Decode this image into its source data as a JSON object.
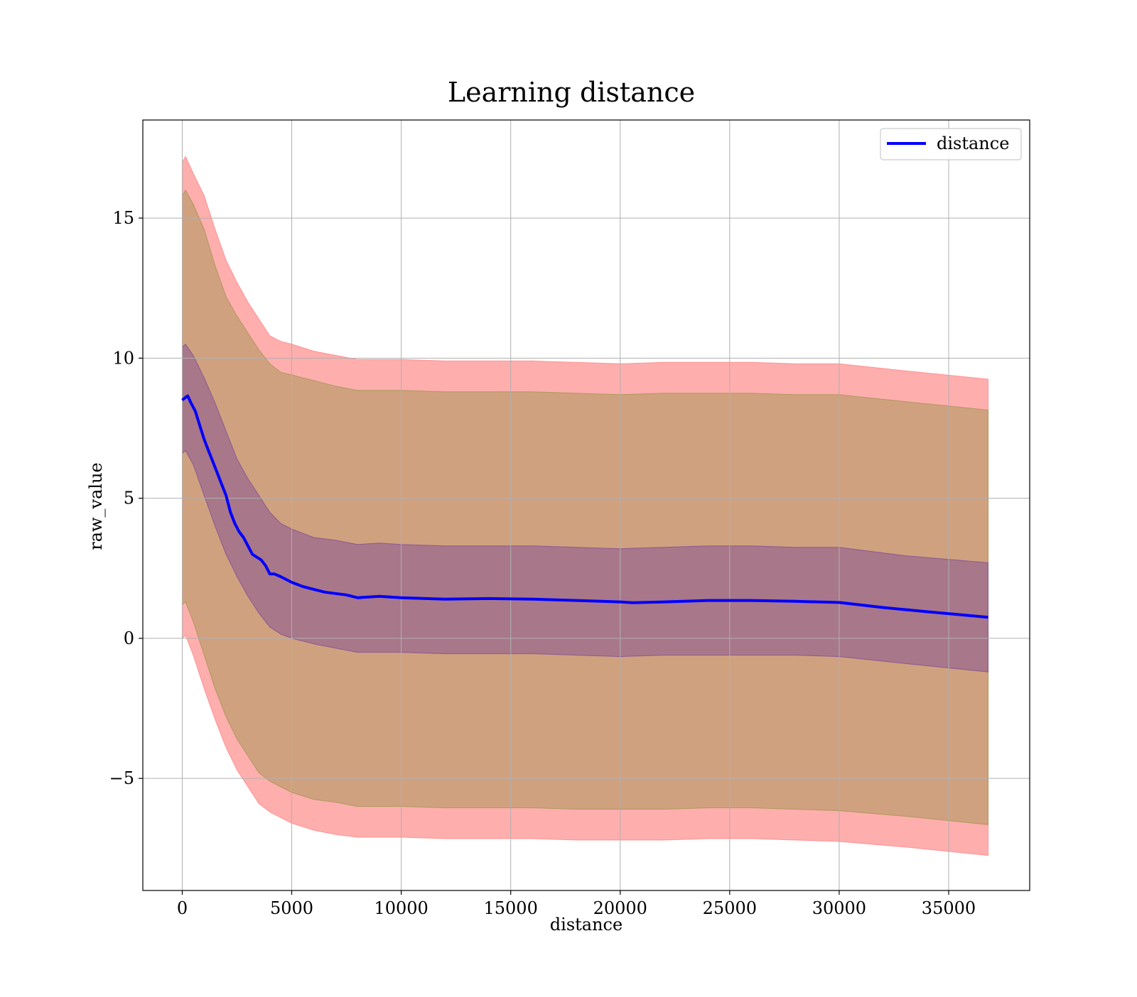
{
  "chart_data": {
    "type": "area",
    "title": "Learning distance",
    "xlabel": "distance",
    "ylabel": "raw_value",
    "xlim": [
      -1800,
      38700
    ],
    "ylim": [
      -9.0,
      18.5
    ],
    "grid": true,
    "legend_position": "top-right",
    "x_ticks": [
      0,
      5000,
      10000,
      15000,
      20000,
      25000,
      30000,
      35000
    ],
    "x_tick_labels": [
      "0",
      "5000",
      "10000",
      "15000",
      "20000",
      "25000",
      "30000",
      "35000"
    ],
    "y_ticks": [
      -5,
      0,
      5,
      10,
      15
    ],
    "y_tick_labels": [
      "−5",
      "0",
      "5",
      "10",
      "15"
    ],
    "colors": {
      "line": "#0000ff",
      "outer_band": "#ff6b6b",
      "middle_band": "#8a8f3a",
      "inner_band": "#6b3a9a",
      "grid": "#b0b0b0"
    },
    "series": [
      {
        "name": "distance",
        "role": "mean",
        "x": [
          0,
          150,
          250,
          400,
          600,
          800,
          1000,
          1200,
          1400,
          1600,
          1800,
          2000,
          2200,
          2400,
          2600,
          2800,
          3000,
          3200,
          3400,
          3600,
          3800,
          4000,
          4200,
          4500,
          5000,
          5500,
          6000,
          6500,
          7000,
          7500,
          8000,
          9000,
          10000,
          12000,
          14000,
          16000,
          18000,
          20000,
          20600,
          22000,
          24000,
          26000,
          28000,
          30000,
          32000,
          34000,
          36800
        ],
        "y": [
          8.5,
          8.6,
          8.65,
          8.4,
          8.1,
          7.6,
          7.1,
          6.7,
          6.3,
          5.9,
          5.5,
          5.1,
          4.5,
          4.1,
          3.8,
          3.6,
          3.3,
          3.0,
          2.9,
          2.8,
          2.6,
          2.3,
          2.3,
          2.2,
          2.0,
          1.85,
          1.75,
          1.65,
          1.6,
          1.55,
          1.45,
          1.5,
          1.45,
          1.4,
          1.42,
          1.4,
          1.35,
          1.3,
          1.27,
          1.3,
          1.35,
          1.35,
          1.32,
          1.28,
          1.1,
          0.95,
          0.75
        ]
      }
    ],
    "bands": [
      {
        "role": "outer",
        "x": [
          0,
          150,
          500,
          1000,
          1500,
          2000,
          2500,
          3000,
          3500,
          4000,
          4500,
          5000,
          6000,
          7000,
          8000,
          9000,
          10000,
          12000,
          14000,
          16000,
          18000,
          20000,
          22000,
          24000,
          26000,
          28000,
          30000,
          33000,
          36800
        ],
        "upper": [
          17.0,
          17.2,
          16.6,
          15.8,
          14.6,
          13.5,
          12.7,
          12.0,
          11.4,
          10.8,
          10.6,
          10.5,
          10.25,
          10.1,
          9.95,
          9.95,
          9.95,
          9.9,
          9.9,
          9.9,
          9.85,
          9.8,
          9.85,
          9.85,
          9.85,
          9.8,
          9.8,
          9.55,
          9.25
        ],
        "lower": [
          0.0,
          0.1,
          -0.6,
          -1.8,
          -2.9,
          -3.9,
          -4.7,
          -5.3,
          -5.9,
          -6.2,
          -6.4,
          -6.6,
          -6.85,
          -7.0,
          -7.1,
          -7.1,
          -7.1,
          -7.15,
          -7.15,
          -7.15,
          -7.2,
          -7.2,
          -7.2,
          -7.15,
          -7.15,
          -7.2,
          -7.25,
          -7.45,
          -7.75
        ]
      },
      {
        "role": "middle",
        "x": [
          0,
          150,
          500,
          1000,
          1500,
          2000,
          2500,
          3000,
          3500,
          4000,
          4500,
          5000,
          6000,
          7000,
          8000,
          9000,
          10000,
          12000,
          14000,
          16000,
          18000,
          20000,
          22000,
          24000,
          26000,
          28000,
          30000,
          33000,
          36800
        ],
        "upper": [
          15.8,
          16.0,
          15.5,
          14.6,
          13.3,
          12.2,
          11.5,
          10.9,
          10.3,
          9.8,
          9.5,
          9.4,
          9.2,
          9.0,
          8.85,
          8.85,
          8.85,
          8.8,
          8.8,
          8.8,
          8.75,
          8.7,
          8.75,
          8.75,
          8.75,
          8.7,
          8.7,
          8.45,
          8.15
        ],
        "lower": [
          1.2,
          1.3,
          0.6,
          -0.6,
          -1.8,
          -2.8,
          -3.6,
          -4.2,
          -4.8,
          -5.1,
          -5.3,
          -5.5,
          -5.75,
          -5.85,
          -6.0,
          -6.0,
          -6.0,
          -6.05,
          -6.05,
          -6.05,
          -6.1,
          -6.1,
          -6.1,
          -6.05,
          -6.05,
          -6.1,
          -6.15,
          -6.35,
          -6.65
        ]
      },
      {
        "role": "inner",
        "x": [
          0,
          150,
          500,
          1000,
          1500,
          2000,
          2500,
          3000,
          3500,
          4000,
          4500,
          5000,
          6000,
          7000,
          8000,
          9000,
          10000,
          12000,
          14000,
          16000,
          18000,
          20000,
          22000,
          24000,
          26000,
          28000,
          30000,
          33000,
          36800
        ],
        "upper": [
          10.4,
          10.5,
          10.1,
          9.3,
          8.4,
          7.4,
          6.4,
          5.7,
          5.1,
          4.5,
          4.1,
          3.9,
          3.6,
          3.5,
          3.35,
          3.4,
          3.35,
          3.3,
          3.3,
          3.3,
          3.25,
          3.2,
          3.25,
          3.3,
          3.3,
          3.25,
          3.25,
          2.95,
          2.7
        ],
        "lower": [
          6.6,
          6.7,
          6.2,
          5.1,
          4.0,
          3.0,
          2.2,
          1.5,
          0.9,
          0.4,
          0.15,
          0.0,
          -0.2,
          -0.35,
          -0.5,
          -0.5,
          -0.5,
          -0.55,
          -0.55,
          -0.55,
          -0.6,
          -0.65,
          -0.6,
          -0.6,
          -0.6,
          -0.6,
          -0.65,
          -0.9,
          -1.2
        ]
      }
    ]
  }
}
